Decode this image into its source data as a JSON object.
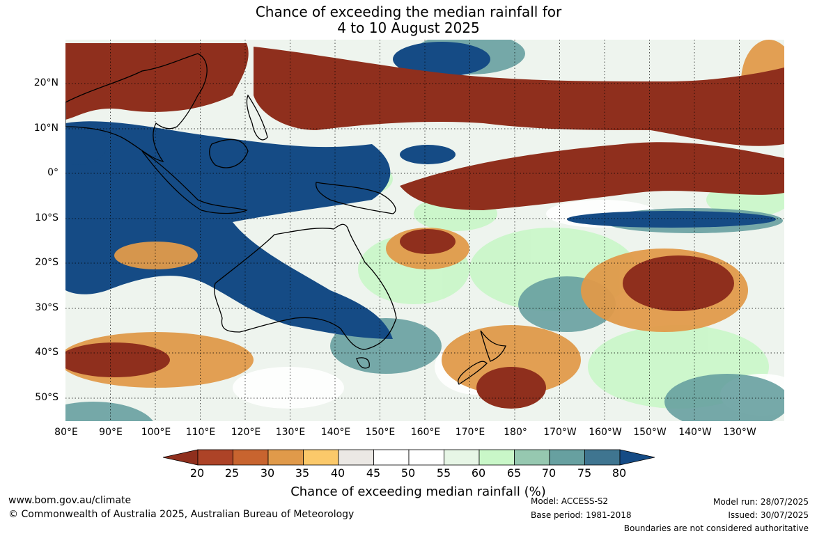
{
  "title": {
    "line1": "Chance of exceeding the median rainfall for",
    "line2": "4 to 10 August 2025"
  },
  "map": {
    "lat_labels": [
      "20°N",
      "10°N",
      "0°",
      "10°S",
      "20°S",
      "30°S",
      "40°S",
      "50°S"
    ],
    "lon_labels": [
      "80°E",
      "90°E",
      "100°E",
      "110°E",
      "120°E",
      "130°E",
      "140°E",
      "150°E",
      "160°E",
      "170°E",
      "180°",
      "170°W",
      "160°W",
      "150°W",
      "140°W",
      "130°W"
    ],
    "icons": [
      "coastline-outline",
      "gridlines-dotted"
    ]
  },
  "legend": {
    "title": "Chance of exceeding median rainfall (%)",
    "ticks": [
      "20",
      "25",
      "30",
      "35",
      "40",
      "45",
      "50",
      "55",
      "60",
      "65",
      "70",
      "75",
      "80"
    ],
    "colors": [
      "#8f2f1d",
      "#ad4327",
      "#c8642f",
      "#e09a4a",
      "#fbc96a",
      "#ebe8e4",
      "#ffffff",
      "#ffffff",
      "#e7f6e6",
      "#c9f7c8",
      "#96c8b0",
      "#67a0a0",
      "#3f7590",
      "#154b85"
    ]
  },
  "footer": {
    "website": "www.bom.gov.au/climate",
    "copyright": "© Commonwealth of Australia 2025, Australian Bureau of Meteorology",
    "model": "Model: ACCESS-S2",
    "base_period": "Base period: 1981-2018",
    "model_run": "Model run: 28/07/2025",
    "issued": "Issued: 30/07/2025",
    "disclaimer": "Boundaries are not considered authoritative"
  }
}
